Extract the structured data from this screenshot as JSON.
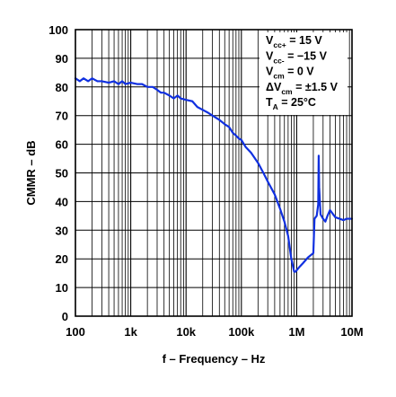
{
  "chart_data": {
    "type": "line",
    "title": "",
    "xlabel": "f – Frequency – Hz",
    "ylabel": "CMMR – dB",
    "x_scale": "log",
    "xlim": [
      100,
      10000000
    ],
    "ylim": [
      0,
      100
    ],
    "grid": true,
    "x_tick_values": [
      100,
      1000,
      10000,
      100000,
      1000000,
      10000000
    ],
    "x_tick_labels": [
      "100",
      "1k",
      "10k",
      "100k",
      "1M",
      "10M"
    ],
    "y_tick_values": [
      0,
      10,
      20,
      30,
      40,
      50,
      60,
      70,
      80,
      90,
      100
    ],
    "y_tick_labels": [
      "0",
      "10",
      "20",
      "30",
      "40",
      "50",
      "60",
      "70",
      "80",
      "90",
      "100"
    ],
    "annotations": [
      {
        "base": "V",
        "sub": "cc+",
        "rest": " = 15 V"
      },
      {
        "base": "V",
        "sub": "cc-",
        "rest": " = −15 V"
      },
      {
        "base": "V",
        "sub": "cm",
        "rest": " = 0 V"
      },
      {
        "base": "ΔV",
        "sub": "cm",
        "rest": " = ±1.5 V"
      },
      {
        "base": "T",
        "sub": "A",
        "rest": " = 25°C"
      }
    ],
    "line_color": "#1030e0",
    "series": [
      {
        "x": [
          100,
          120,
          140,
          170,
          200,
          250,
          300,
          400,
          500,
          600,
          700,
          800,
          1000,
          1300,
          1600,
          2000,
          2500,
          3000,
          3500,
          4000,
          5000,
          6000,
          7000,
          8000,
          10000,
          13000,
          16000,
          20000,
          25000,
          30000,
          40000,
          50000,
          60000,
          70000,
          80000,
          90000,
          100000,
          120000,
          150000,
          200000,
          250000,
          300000,
          400000,
          500000,
          600000,
          700000,
          800000,
          900000,
          950000,
          1000000,
          1100000,
          1300000,
          1600000,
          2000000,
          2100000,
          2300000,
          2450000,
          2500000,
          2550000,
          2700000,
          3000000,
          3300000,
          3600000,
          4000000,
          5000000,
          6000000,
          7000000,
          8000000,
          10000000
        ],
        "y": [
          83,
          82,
          83,
          82,
          83,
          82,
          82,
          81.5,
          82,
          81,
          82,
          81,
          81.5,
          81,
          81,
          80,
          80,
          79,
          78,
          78,
          77,
          76,
          77,
          76,
          75.5,
          75,
          73,
          72,
          71,
          70,
          68.5,
          67,
          66,
          64,
          63,
          62,
          61.5,
          59,
          57,
          53.5,
          50,
          47,
          42.5,
          37.5,
          33,
          28,
          20,
          15.5,
          15.5,
          16,
          17,
          18.5,
          20.5,
          22,
          34,
          35,
          39,
          56,
          45,
          35.5,
          34,
          33,
          35,
          37,
          34.5,
          34,
          33.5,
          34,
          34
        ]
      }
    ]
  }
}
